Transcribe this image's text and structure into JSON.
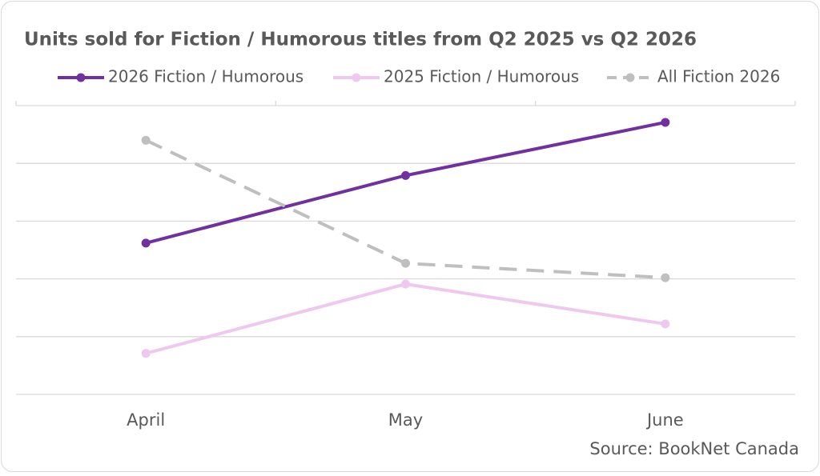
{
  "chart_data": {
    "type": "line",
    "title": "Units sold for Fiction / Humorous titles from Q2 2025 vs Q2 2026",
    "categories": [
      "April",
      "May",
      "June"
    ],
    "series": [
      {
        "name": "2026 Fiction / Humorous",
        "color": "#7030a0",
        "dash": false,
        "values": [
          2.62,
          3.79,
          4.71
        ]
      },
      {
        "name": "2025 Fiction / Humorous",
        "color": "#efc8ef",
        "dash": false,
        "values": [
          0.71,
          1.91,
          1.22
        ]
      },
      {
        "name": "All Fiction 2026",
        "color": "#bfbfbf",
        "dash": true,
        "values": [
          4.4,
          2.27,
          2.02
        ]
      }
    ],
    "ylim": [
      0,
      5
    ],
    "yticks": [
      0,
      1,
      2,
      3,
      4,
      5
    ],
    "grid": true,
    "source": "Source: BookNet Canada"
  }
}
